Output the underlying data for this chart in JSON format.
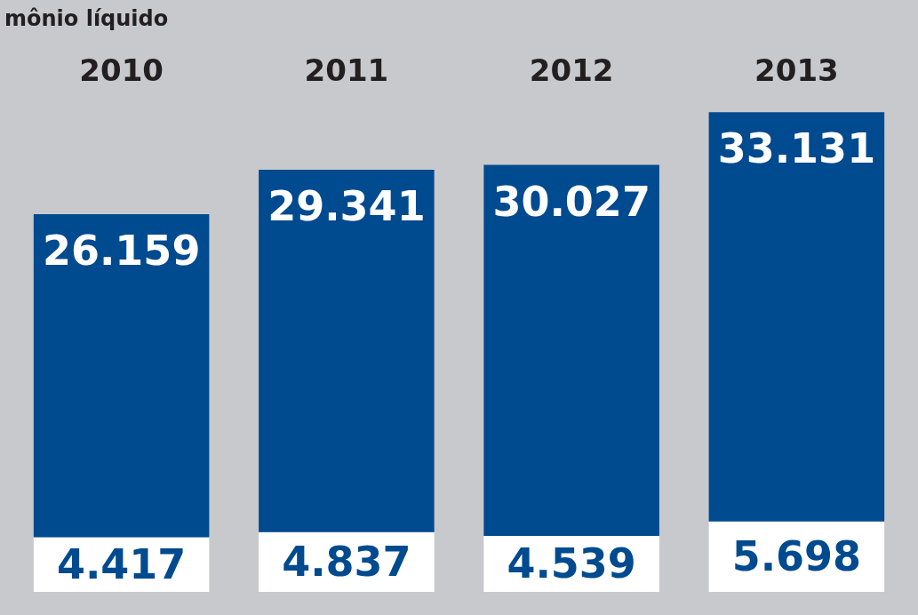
{
  "chart_data": {
    "type": "bar",
    "title": "mônio líquido",
    "categories": [
      "2010",
      "2011",
      "2012",
      "2013"
    ],
    "stacked": true,
    "series": [
      {
        "color": "#ffffff",
        "values": [
          4417,
          4837,
          4539,
          5698
        ],
        "value_labels": [
          "4.417",
          "4.837",
          "4.539",
          "5.698"
        ]
      },
      {
        "color": "#004a8f",
        "values": [
          26159,
          29341,
          30027,
          33131
        ],
        "value_labels": [
          "26.159",
          "29.341",
          "30.027",
          "33.131"
        ]
      }
    ]
  }
}
